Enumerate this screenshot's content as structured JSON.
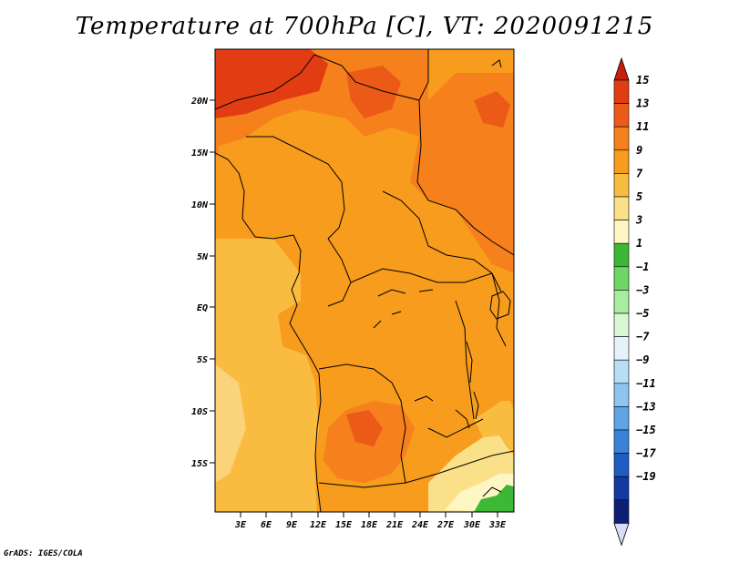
{
  "title": "Temperature at 700hPa [C], VT: 2020091215",
  "credit": "GrADS: IGES/COLA",
  "map": {
    "lat_labels": [
      "20N",
      "15N",
      "10N",
      "5N",
      "EQ",
      "5S",
      "10S",
      "15S"
    ],
    "lon_labels": [
      "3E",
      "6E",
      "9E",
      "12E",
      "15E",
      "18E",
      "21E",
      "24E",
      "27E",
      "30E",
      "33E"
    ]
  },
  "colorbar": {
    "labels": [
      "15",
      "13",
      "11",
      "9",
      "7",
      "5",
      "3",
      "1",
      "−1",
      "−3",
      "−5",
      "−7",
      "−9",
      "−11",
      "−13",
      "−15",
      "−17",
      "−19"
    ],
    "colors": [
      "#e23c12",
      "#ec5a17",
      "#f5801c",
      "#f79c1c",
      "#f9bc40",
      "#fbe08a",
      "#fef7c4",
      "#3cb836",
      "#6fd766",
      "#a8ec9f",
      "#daf7d5",
      "#e4f3fb",
      "#b8def6",
      "#8cc6f0",
      "#5fa4e6",
      "#3a82d8",
      "#1f5cc2",
      "#123aa0",
      "#0b1f74"
    ],
    "top_arrow_color": "#c81e0c",
    "bottom_arrow_color": "#d8dcf6"
  }
}
